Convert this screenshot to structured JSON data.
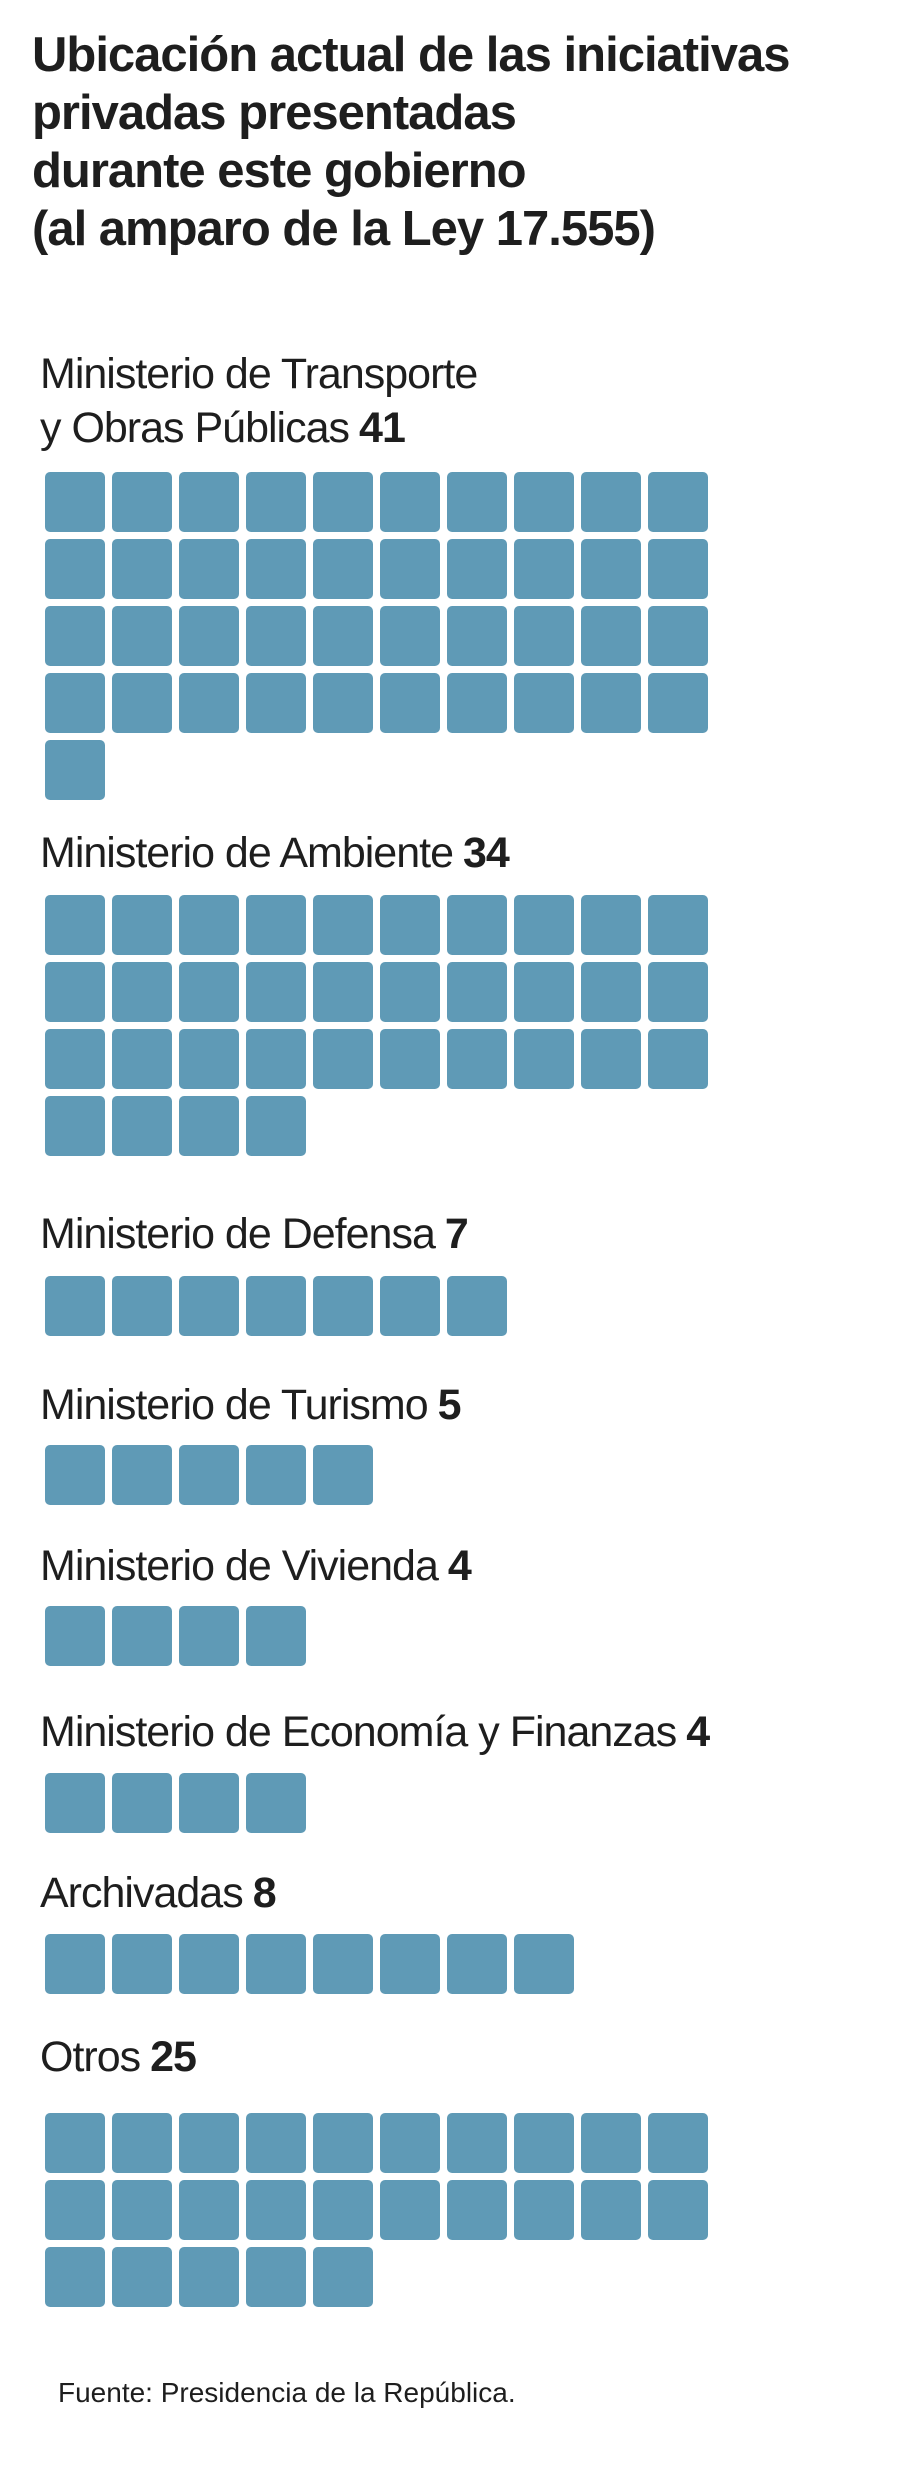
{
  "title_lines": [
    "Ubicación actual de las iniciativas",
    "privadas presentadas",
    "durante este gobierno",
    "(al amparo de la Ley 17.555)"
  ],
  "source": "Fuente: Presidencia de la República.",
  "colors": {
    "unit": "#5f9ab6",
    "text": "#1e1e1e",
    "background": "#ffffff"
  },
  "chart_data": {
    "type": "waffle",
    "units_per_row": 10,
    "unit_value": 1,
    "categories": [
      {
        "label_lines": [
          "Ministerio de Transporte",
          "y Obras Públicas"
        ],
        "value": 41
      },
      {
        "label_lines": [
          "Ministerio de Ambiente"
        ],
        "value": 34
      },
      {
        "label_lines": [
          "Ministerio de Defensa"
        ],
        "value": 7
      },
      {
        "label_lines": [
          "Ministerio de Turismo"
        ],
        "value": 5
      },
      {
        "label_lines": [
          "Ministerio de Vivienda"
        ],
        "value": 4
      },
      {
        "label_lines": [
          "Ministerio de Economía y Finanzas"
        ],
        "value": 4
      },
      {
        "label_lines": [
          "Archivadas"
        ],
        "value": 8
      },
      {
        "label_lines": [
          "Otros"
        ],
        "value": 25
      }
    ]
  }
}
